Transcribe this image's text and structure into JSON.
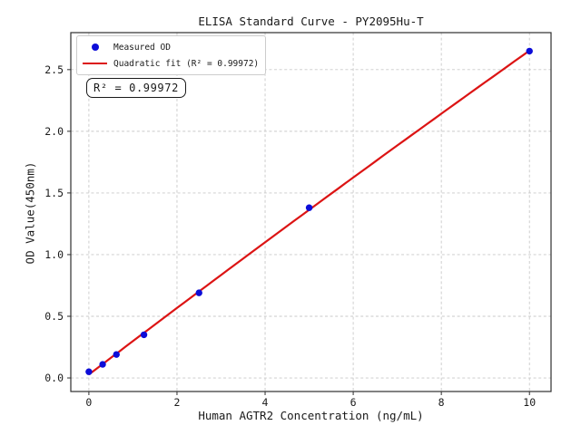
{
  "title": "ELISA Standard Curve - PY2095Hu-T",
  "axes": {
    "x_label": "Human AGTR2 Concentration (ng/mL)",
    "y_label": "OD Value(450nm)"
  },
  "legend": {
    "items": [
      {
        "label": "Measured OD",
        "marker": "dot",
        "color": "#0d0dd8"
      },
      {
        "label": "Quadratic fit (R² = 0.99972)",
        "marker": "line",
        "color": "#dc1414"
      }
    ]
  },
  "annotation": "R² = 0.99972",
  "colors": {
    "measured_points": "#0d0dd8",
    "fit_line": "#dc1414",
    "grid": "#c9c9c9",
    "spine": "#2e2e2e",
    "text": "#1a1a1a",
    "background": "#ffffff"
  },
  "chart_data": {
    "type": "scatter",
    "title": "ELISA Standard Curve - PY2095Hu-T",
    "xlabel": "Human AGTR2 Concentration (ng/mL)",
    "ylabel": "OD Value(450nm)",
    "series": [
      {
        "name": "Measured OD",
        "type": "scatter",
        "color": "#0d0dd8",
        "x": [
          0,
          0.3125,
          0.625,
          1.25,
          2.5,
          5,
          10
        ],
        "y": [
          0.05,
          0.11,
          0.19,
          0.35,
          0.69,
          1.38,
          2.65
        ]
      },
      {
        "name": "Quadratic fit (R² = 0.99972)",
        "type": "quadratic_fit",
        "color": "#dc1414",
        "coefficients": [
          0.0277,
          0.2716,
          -0.0009
        ],
        "x_range": [
          0,
          10
        ],
        "r_squared": 0.99972
      }
    ],
    "x_ticks": [
      0,
      2,
      4,
      6,
      8,
      10
    ],
    "x_tick_labels": [
      "0",
      "2",
      "4",
      "6",
      "8",
      "10"
    ],
    "y_ticks": [
      0,
      0.5,
      1.0,
      1.5,
      2.0,
      2.5
    ],
    "y_tick_labels": [
      "0.0",
      "0.5",
      "1.0",
      "1.5",
      "2.0",
      "2.5"
    ],
    "xlim": [
      -0.41,
      10.49
    ],
    "ylim": [
      -0.11,
      2.8
    ],
    "grid": true,
    "grid_style": "dashed",
    "legend_position": "upper left"
  }
}
